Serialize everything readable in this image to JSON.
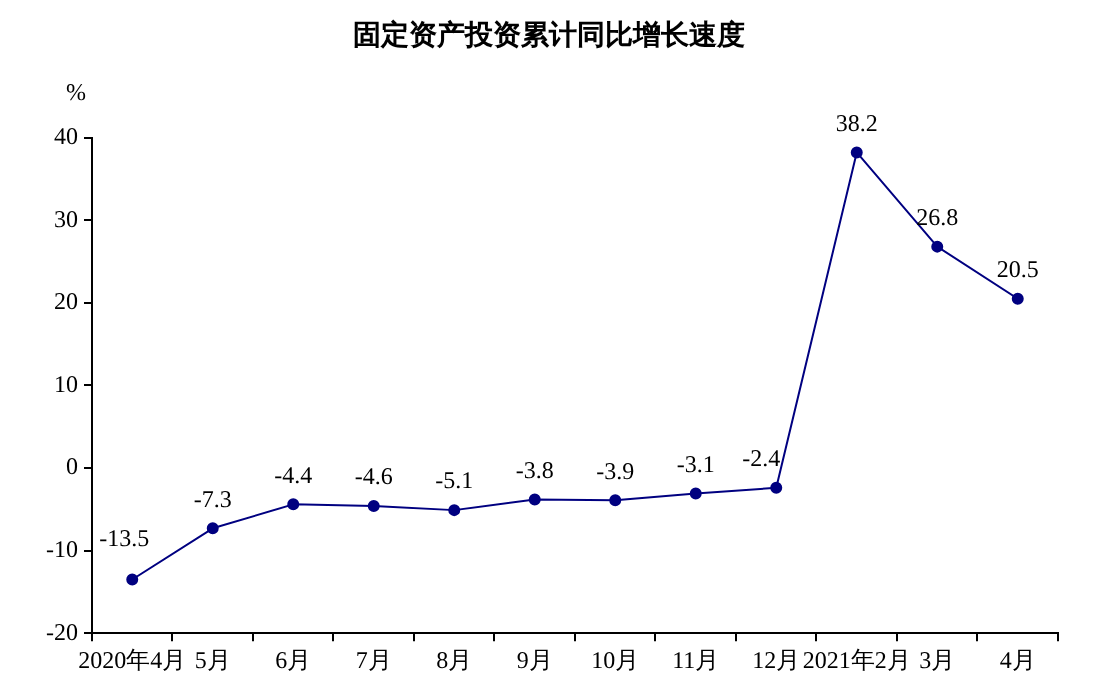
{
  "chart_data": {
    "type": "line",
    "title": "固定资产投资累计同比增长速度",
    "ylabel": "%",
    "categories": [
      "2020年4月",
      "5月",
      "6月",
      "7月",
      "8月",
      "9月",
      "10月",
      "11月",
      "12月",
      "2021年2月",
      "3月",
      "4月"
    ],
    "series": [
      {
        "color": "#000080",
        "values": [
          -13.5,
          -7.3,
          -4.4,
          -4.6,
          -5.1,
          -3.8,
          -3.9,
          -3.1,
          -2.4,
          38.2,
          26.8,
          20.5
        ]
      }
    ],
    "ylim": [
      -20,
      40
    ],
    "yticks": [
      -20,
      -10,
      0,
      10,
      20,
      30,
      40
    ],
    "grid": false,
    "legend": false,
    "marker": "circle",
    "line_style": "solid",
    "data_labels": true
  }
}
